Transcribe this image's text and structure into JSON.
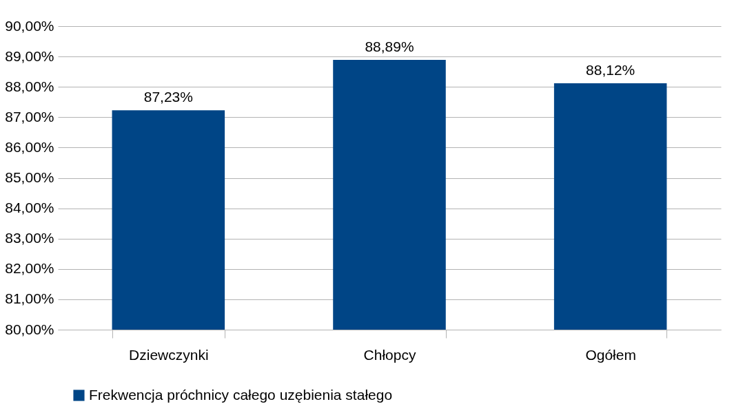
{
  "chart_data": {
    "type": "bar",
    "categories": [
      "Dziewczynki",
      "Chłopcy",
      "Ogółem"
    ],
    "series": [
      {
        "name": "Frekwencja próchnicy całego uzębienia stałego",
        "color": "#004586",
        "values": [
          87.23,
          88.89,
          88.12
        ],
        "value_labels": [
          "87,23%",
          "88,89%",
          "88,12%"
        ]
      }
    ],
    "ylim": [
      80,
      90
    ],
    "yticks": [
      {
        "value": 80,
        "label": "80,00%"
      },
      {
        "value": 81,
        "label": "81,00%"
      },
      {
        "value": 82,
        "label": "82,00%"
      },
      {
        "value": 83,
        "label": "83,00%"
      },
      {
        "value": 84,
        "label": "84,00%"
      },
      {
        "value": 85,
        "label": "85,00%"
      },
      {
        "value": 86,
        "label": "86,00%"
      },
      {
        "value": 87,
        "label": "87,00%"
      },
      {
        "value": 88,
        "label": "88,00%"
      },
      {
        "value": 89,
        "label": "89,00%"
      },
      {
        "value": 90,
        "label": "90,00%"
      }
    ],
    "grid": "y",
    "legend": "bottom"
  }
}
